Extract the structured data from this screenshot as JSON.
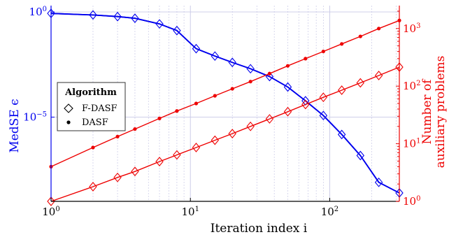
{
  "chart_data": {
    "type": "line",
    "xlabel": "Iteration index i",
    "ylabel_left": "MedSE ϵ",
    "ylabel_right": [
      "Number of",
      "auxiliary problems"
    ],
    "x_scale": "log",
    "y_left_scale": "log",
    "y_right_scale": "log",
    "xlim": [
      1,
      316
    ],
    "ylim_left": [
      1e-09,
      2
    ],
    "ylim_right": [
      1,
      2500
    ],
    "x_ticks": [
      {
        "value": 1,
        "label": "10",
        "exp": "0"
      },
      {
        "value": 10,
        "label": "10",
        "exp": "1"
      },
      {
        "value": 100,
        "label": "10",
        "exp": "2"
      }
    ],
    "y_left_ticks": [
      {
        "value": 1,
        "label": "10",
        "exp": "0"
      },
      {
        "value": 1e-05,
        "label": "10",
        "exp": "−5"
      }
    ],
    "y_right_ticks": [
      {
        "value": 1,
        "label": "10",
        "exp": "0"
      },
      {
        "value": 10,
        "label": "10",
        "exp": "1"
      },
      {
        "value": 100,
        "label": "10",
        "exp": "2"
      },
      {
        "value": 1000,
        "label": "10",
        "exp": "3"
      }
    ],
    "grid": true,
    "legend": {
      "title": "Algorithm",
      "placement": "center-left",
      "entries": [
        {
          "name": "F-DASF",
          "marker": "diamond"
        },
        {
          "name": "DASF",
          "marker": "dot"
        }
      ]
    },
    "colors": {
      "medse": "#0000ee",
      "aux": "#ee0000",
      "grid": "#c8c8e6"
    },
    "series": [
      {
        "name": "F-DASF",
        "axis": "left",
        "x": [
          1,
          2,
          3,
          4,
          6,
          8,
          11,
          15,
          20,
          27,
          37,
          50,
          67,
          90,
          122,
          166,
          225,
          316
        ],
        "y": [
          0.85,
          0.72,
          0.6,
          0.5,
          0.27,
          0.13,
          0.018,
          0.008,
          0.004,
          0.002,
          0.00085,
          0.00027,
          6e-05,
          1.2e-05,
          1.5e-06,
          1.5e-07,
          8e-09,
          2.5e-09
        ]
      },
      {
        "name": "DASF",
        "axis": "left",
        "x": [
          1,
          2,
          3,
          4,
          6,
          8,
          11,
          15,
          20,
          27,
          37,
          50,
          67,
          90,
          122,
          166,
          225,
          316
        ],
        "y": [
          0.85,
          0.72,
          0.6,
          0.5,
          0.27,
          0.13,
          0.018,
          0.008,
          0.004,
          0.002,
          0.00085,
          0.00027,
          6e-05,
          1.2e-05,
          1.5e-06,
          1.5e-07,
          8e-09,
          2.5e-09
        ]
      },
      {
        "name": "F-DASF",
        "axis": "right",
        "x": [
          1,
          2,
          3,
          4,
          6,
          8,
          11,
          15,
          20,
          27,
          37,
          50,
          67,
          90,
          122,
          166,
          225,
          316
        ],
        "y": [
          1,
          1.8,
          2.6,
          3.3,
          4.9,
          6.4,
          8.6,
          11.5,
          15,
          20,
          27,
          36,
          48,
          64,
          85,
          114,
          153,
          214
        ]
      },
      {
        "name": "DASF",
        "axis": "right",
        "x": [
          1,
          2,
          3,
          4,
          6,
          8,
          11,
          15,
          20,
          27,
          37,
          50,
          67,
          90,
          122,
          166,
          225,
          316
        ],
        "y": [
          4,
          8.6,
          13.3,
          18,
          27.5,
          37,
          50,
          68,
          90,
          120,
          165,
          225,
          300,
          400,
          540,
          730,
          1000,
          1380
        ]
      }
    ]
  }
}
